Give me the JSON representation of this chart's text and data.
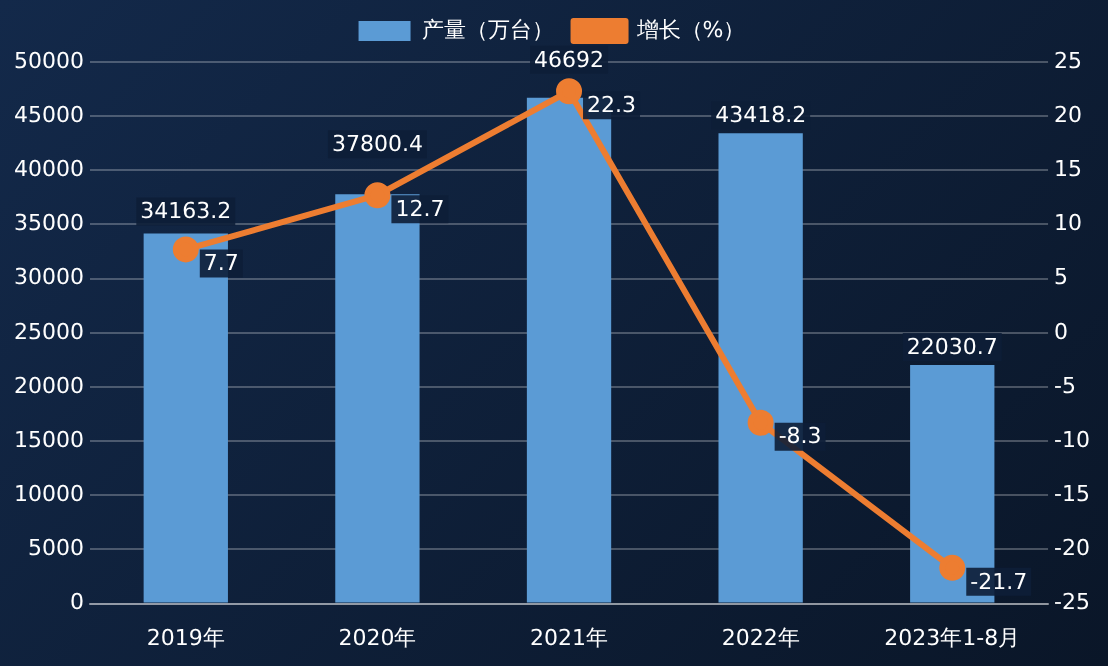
{
  "chart_data": {
    "type": "bar",
    "categories": [
      "2019年",
      "2020年",
      "2021年",
      "2022年",
      "2023年1-8月"
    ],
    "series": [
      {
        "name": "产量（万台）",
        "color": "#5b9bd5",
        "values": [
          34163.2,
          37800.4,
          46692,
          43418.2,
          22030.7
        ]
      },
      {
        "name": "增长（%）",
        "type": "line",
        "axis": "y2",
        "color": "#ed7d31",
        "marker": "circle",
        "values": [
          7.7,
          12.7,
          22.3,
          -8.3,
          -21.7
        ]
      }
    ],
    "ylim": [
      0,
      50000
    ],
    "yticks": [
      0,
      5000,
      10000,
      15000,
      20000,
      25000,
      30000,
      35000,
      40000,
      45000,
      50000
    ],
    "y2lim": [
      -25,
      25
    ],
    "y2ticks": [
      -25,
      -20,
      -15,
      -10,
      -5,
      0,
      5,
      10,
      15,
      20,
      25
    ],
    "grid": "y",
    "legend": "top",
    "data_labels": true
  }
}
